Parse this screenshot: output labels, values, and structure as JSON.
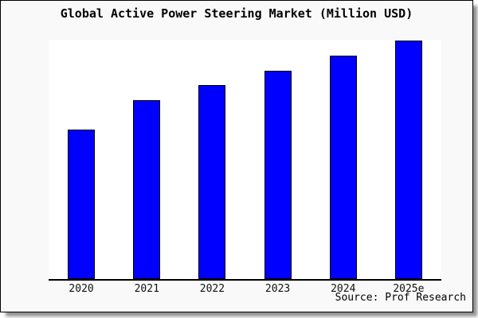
{
  "window": {
    "background_color": "#ffffff",
    "card_background_color": "#f9f9f9",
    "frame_border_color": "#000000",
    "shadow_color": "#909090"
  },
  "chart": {
    "title": "Global Active Power Steering Market (Million USD)",
    "source": "Source: Prof Research"
  },
  "chart_data": {
    "type": "bar",
    "title": "Global Active Power Steering Market (Million USD)",
    "categories": [
      "2020",
      "2021",
      "2022",
      "2023",
      "2024",
      "2025e"
    ],
    "values": [
      188,
      225,
      244,
      262,
      281,
      300
    ],
    "values_note": "No y-axis or data labels shown; values are bar heights in screen pixels (relative magnitudes only)",
    "values_relative_to_max": [
      0.63,
      0.75,
      0.81,
      0.87,
      0.94,
      1.0
    ],
    "xlabel": "",
    "ylabel": "",
    "ylim": [
      0,
      301
    ],
    "grid": false,
    "legend": "none",
    "y_axis_visible": false,
    "x_axis_line": true,
    "bar_color": "#0000ff",
    "bar_border_color": "#000000",
    "plot_background": "#ffffff",
    "annotations": [
      "Source: Prof Research"
    ]
  }
}
